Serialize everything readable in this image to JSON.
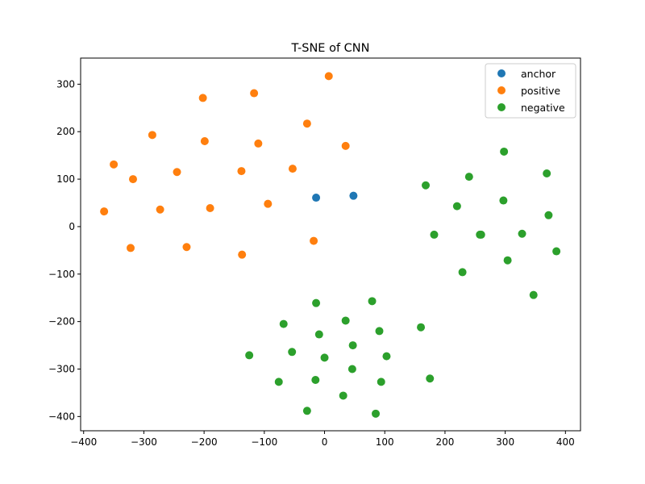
{
  "chart_data": {
    "type": "scatter",
    "title": "T-SNE of CNN",
    "xlabel": "",
    "ylabel": "",
    "xlim": [
      -405,
      425
    ],
    "ylim": [
      -430,
      355
    ],
    "xticks": [
      -400,
      -300,
      -200,
      -100,
      0,
      100,
      200,
      300,
      400
    ],
    "xtick_labels": [
      "−400",
      "−300",
      "−200",
      "−100",
      "0",
      "100",
      "200",
      "300",
      "400"
    ],
    "yticks": [
      -400,
      -300,
      -200,
      -100,
      0,
      100,
      200,
      300
    ],
    "ytick_labels": [
      "−400",
      "−300",
      "−200",
      "−100",
      "0",
      "100",
      "200",
      "300"
    ],
    "grid": false,
    "legend_position": "top-right",
    "series": [
      {
        "name": "anchor",
        "color": "#1f77b4",
        "points": [
          [
            -14,
            61
          ],
          [
            48,
            65
          ]
        ]
      },
      {
        "name": "positive",
        "color": "#ff7f0e",
        "points": [
          [
            7,
            317
          ],
          [
            -117,
            281
          ],
          [
            -202,
            271
          ],
          [
            -29,
            217
          ],
          [
            -286,
            193
          ],
          [
            -199,
            180
          ],
          [
            -110,
            175
          ],
          [
            35,
            170
          ],
          [
            -350,
            131
          ],
          [
            -245,
            115
          ],
          [
            -138,
            117
          ],
          [
            -53,
            122
          ],
          [
            -318,
            100
          ],
          [
            -94,
            48
          ],
          [
            -366,
            32
          ],
          [
            -273,
            36
          ],
          [
            -190,
            39
          ],
          [
            -18,
            -30
          ],
          [
            -322,
            -45
          ],
          [
            -229,
            -43
          ],
          [
            -137,
            -59
          ]
        ]
      },
      {
        "name": "negative",
        "color": "#2ca02c",
        "points": [
          [
            298,
            158
          ],
          [
            240,
            105
          ],
          [
            369,
            112
          ],
          [
            168,
            87
          ],
          [
            297,
            55
          ],
          [
            220,
            43
          ],
          [
            372,
            24
          ],
          [
            182,
            -17
          ],
          [
            258,
            -17
          ],
          [
            260,
            -17
          ],
          [
            328,
            -15
          ],
          [
            385,
            -52
          ],
          [
            304,
            -71
          ],
          [
            229,
            -96
          ],
          [
            347,
            -144
          ],
          [
            -14,
            -161
          ],
          [
            79,
            -157
          ],
          [
            35,
            -198
          ],
          [
            -68,
            -205
          ],
          [
            91,
            -220
          ],
          [
            160,
            -212
          ],
          [
            -9,
            -227
          ],
          [
            47,
            -250
          ],
          [
            -54,
            -264
          ],
          [
            -125,
            -271
          ],
          [
            0,
            -276
          ],
          [
            103,
            -273
          ],
          [
            46,
            -300
          ],
          [
            -76,
            -327
          ],
          [
            -15,
            -323
          ],
          [
            94,
            -327
          ],
          [
            175,
            -320
          ],
          [
            31,
            -356
          ],
          [
            -29,
            -388
          ],
          [
            85,
            -394
          ]
        ]
      }
    ]
  }
}
